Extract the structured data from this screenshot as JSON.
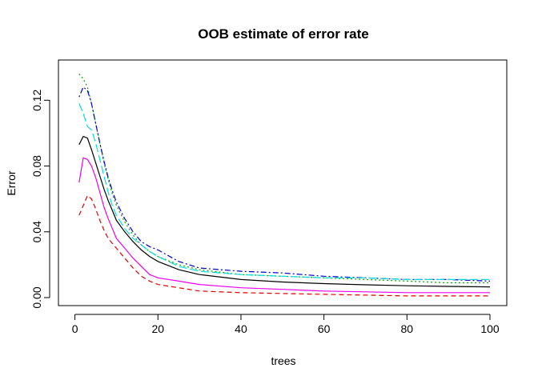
{
  "chart_data": {
    "type": "line",
    "title": "OOB estimate of  error rate",
    "xlabel": "trees",
    "ylabel": "Error",
    "xlim": [
      0,
      100
    ],
    "ylim": [
      0,
      0.13
    ],
    "x_ticks": [
      "0",
      "20",
      "40",
      "60",
      "80",
      "100"
    ],
    "y_ticks": [
      "0.00",
      "0.04",
      "0.08",
      "0.12"
    ],
    "grid": false,
    "legend": "none",
    "series": [
      {
        "color": "#000000",
        "dash": "solid",
        "points": [
          [
            1,
            0.093
          ],
          [
            2,
            0.098
          ],
          [
            3,
            0.097
          ],
          [
            4,
            0.09
          ],
          [
            5,
            0.082
          ],
          [
            6,
            0.074
          ],
          [
            7,
            0.066
          ],
          [
            8,
            0.059
          ],
          [
            9,
            0.053
          ],
          [
            10,
            0.047
          ],
          [
            12,
            0.04
          ],
          [
            14,
            0.034
          ],
          [
            16,
            0.029
          ],
          [
            18,
            0.025
          ],
          [
            20,
            0.022
          ],
          [
            25,
            0.017
          ],
          [
            30,
            0.014
          ],
          [
            40,
            0.011
          ],
          [
            50,
            0.0095
          ],
          [
            60,
            0.0085
          ],
          [
            70,
            0.0078
          ],
          [
            80,
            0.0072
          ],
          [
            90,
            0.0068
          ],
          [
            100,
            0.0065
          ]
        ]
      },
      {
        "color": "#dd0000",
        "dash": "dashed",
        "points": [
          [
            1,
            0.05
          ],
          [
            2,
            0.056
          ],
          [
            3,
            0.062
          ],
          [
            4,
            0.06
          ],
          [
            5,
            0.054
          ],
          [
            6,
            0.047
          ],
          [
            7,
            0.041
          ],
          [
            8,
            0.036
          ],
          [
            9,
            0.033
          ],
          [
            10,
            0.03
          ],
          [
            12,
            0.024
          ],
          [
            14,
            0.018
          ],
          [
            16,
            0.013
          ],
          [
            18,
            0.01
          ],
          [
            20,
            0.008
          ],
          [
            25,
            0.006
          ],
          [
            30,
            0.004
          ],
          [
            40,
            0.003
          ],
          [
            50,
            0.0025
          ],
          [
            60,
            0.002
          ],
          [
            70,
            0.0015
          ],
          [
            80,
            0.001
          ],
          [
            90,
            0.001
          ],
          [
            100,
            0.001
          ]
        ]
      },
      {
        "color": "#00aa00",
        "dash": "dotted",
        "points": [
          [
            1,
            0.136
          ],
          [
            2,
            0.133
          ],
          [
            3,
            0.128
          ],
          [
            4,
            0.118
          ],
          [
            5,
            0.106
          ],
          [
            6,
            0.094
          ],
          [
            7,
            0.082
          ],
          [
            8,
            0.072
          ],
          [
            9,
            0.063
          ],
          [
            10,
            0.056
          ],
          [
            12,
            0.046
          ],
          [
            14,
            0.038
          ],
          [
            16,
            0.032
          ],
          [
            18,
            0.028
          ],
          [
            20,
            0.025
          ],
          [
            25,
            0.02
          ],
          [
            30,
            0.017
          ],
          [
            40,
            0.014
          ],
          [
            50,
            0.013
          ],
          [
            60,
            0.012
          ],
          [
            70,
            0.011
          ],
          [
            80,
            0.01
          ],
          [
            90,
            0.009
          ],
          [
            100,
            0.009
          ]
        ]
      },
      {
        "color": "#0000cc",
        "dash": "dotdash",
        "points": [
          [
            1,
            0.122
          ],
          [
            2,
            0.128
          ],
          [
            3,
            0.126
          ],
          [
            4,
            0.118
          ],
          [
            5,
            0.106
          ],
          [
            6,
            0.094
          ],
          [
            7,
            0.083
          ],
          [
            8,
            0.073
          ],
          [
            9,
            0.065
          ],
          [
            10,
            0.058
          ],
          [
            12,
            0.048
          ],
          [
            14,
            0.04
          ],
          [
            16,
            0.034
          ],
          [
            18,
            0.031
          ],
          [
            20,
            0.029
          ],
          [
            25,
            0.022
          ],
          [
            30,
            0.018
          ],
          [
            40,
            0.016
          ],
          [
            50,
            0.015
          ],
          [
            60,
            0.013
          ],
          [
            70,
            0.012
          ],
          [
            80,
            0.011
          ],
          [
            90,
            0.011
          ],
          [
            100,
            0.01
          ]
        ]
      },
      {
        "color": "#00dddd",
        "dash": "longdash",
        "points": [
          [
            1,
            0.118
          ],
          [
            2,
            0.112
          ],
          [
            3,
            0.104
          ],
          [
            4,
            0.102
          ],
          [
            5,
            0.094
          ],
          [
            6,
            0.084
          ],
          [
            7,
            0.074
          ],
          [
            8,
            0.064
          ],
          [
            9,
            0.056
          ],
          [
            10,
            0.05
          ],
          [
            12,
            0.042
          ],
          [
            14,
            0.036
          ],
          [
            16,
            0.032
          ],
          [
            18,
            0.028
          ],
          [
            20,
            0.025
          ],
          [
            25,
            0.019
          ],
          [
            30,
            0.016
          ],
          [
            40,
            0.014
          ],
          [
            50,
            0.013
          ],
          [
            60,
            0.012
          ],
          [
            70,
            0.012
          ],
          [
            80,
            0.011
          ],
          [
            90,
            0.011
          ],
          [
            100,
            0.011
          ]
        ]
      },
      {
        "color": "#ee00ee",
        "dash": "solid",
        "points": [
          [
            1,
            0.07
          ],
          [
            2,
            0.085
          ],
          [
            3,
            0.084
          ],
          [
            4,
            0.08
          ],
          [
            5,
            0.073
          ],
          [
            6,
            0.064
          ],
          [
            7,
            0.055
          ],
          [
            8,
            0.048
          ],
          [
            9,
            0.042
          ],
          [
            10,
            0.036
          ],
          [
            12,
            0.03
          ],
          [
            14,
            0.024
          ],
          [
            16,
            0.019
          ],
          [
            18,
            0.014
          ],
          [
            20,
            0.012
          ],
          [
            25,
            0.01
          ],
          [
            30,
            0.008
          ],
          [
            40,
            0.006
          ],
          [
            50,
            0.005
          ],
          [
            60,
            0.004
          ],
          [
            70,
            0.0035
          ],
          [
            80,
            0.003
          ],
          [
            90,
            0.003
          ],
          [
            100,
            0.003
          ]
        ]
      }
    ]
  }
}
